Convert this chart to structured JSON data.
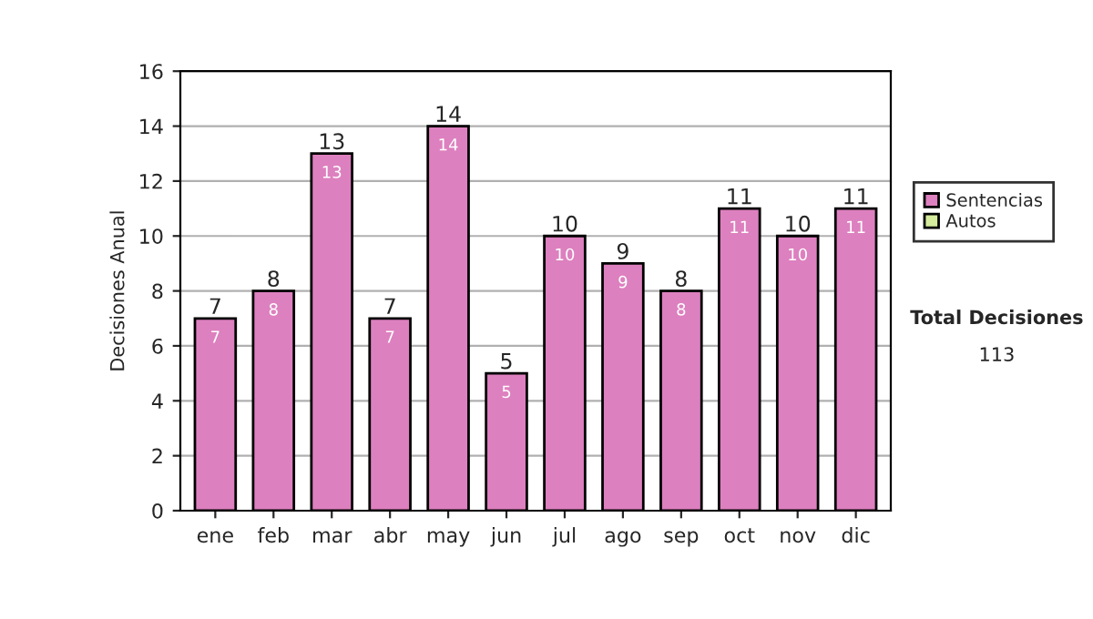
{
  "chart_data": {
    "type": "bar",
    "stacked": true,
    "ylabel": "Decisiones Anual",
    "categories": [
      "ene",
      "feb",
      "mar",
      "abr",
      "may",
      "jun",
      "jul",
      "ago",
      "sep",
      "oct",
      "nov",
      "dic"
    ],
    "series": [
      {
        "name": "Sentencias",
        "color": "#dd80bf",
        "values": [
          7,
          8,
          13,
          7,
          14,
          5,
          10,
          9,
          8,
          11,
          10,
          11
        ],
        "value_labels": [
          "7",
          "8",
          "13",
          "7",
          "14",
          "5",
          "10",
          "9",
          "8",
          "11",
          "10",
          "11"
        ]
      },
      {
        "name": "Autos",
        "color": "#d4ec9c",
        "values": [
          0,
          0,
          0,
          0,
          0,
          0,
          0,
          0,
          0,
          0,
          0,
          0
        ]
      }
    ],
    "totals": [
      "7",
      "8",
      "13",
      "7",
      "14",
      "5",
      "10",
      "9",
      "8",
      "11",
      "10",
      "11"
    ],
    "ylim": [
      0,
      16
    ],
    "yticks": [
      0,
      2,
      4,
      6,
      8,
      10,
      12,
      14,
      16
    ],
    "grid": "y",
    "legend": "right",
    "annotations": [
      "Total Decisiones",
      "113"
    ]
  }
}
